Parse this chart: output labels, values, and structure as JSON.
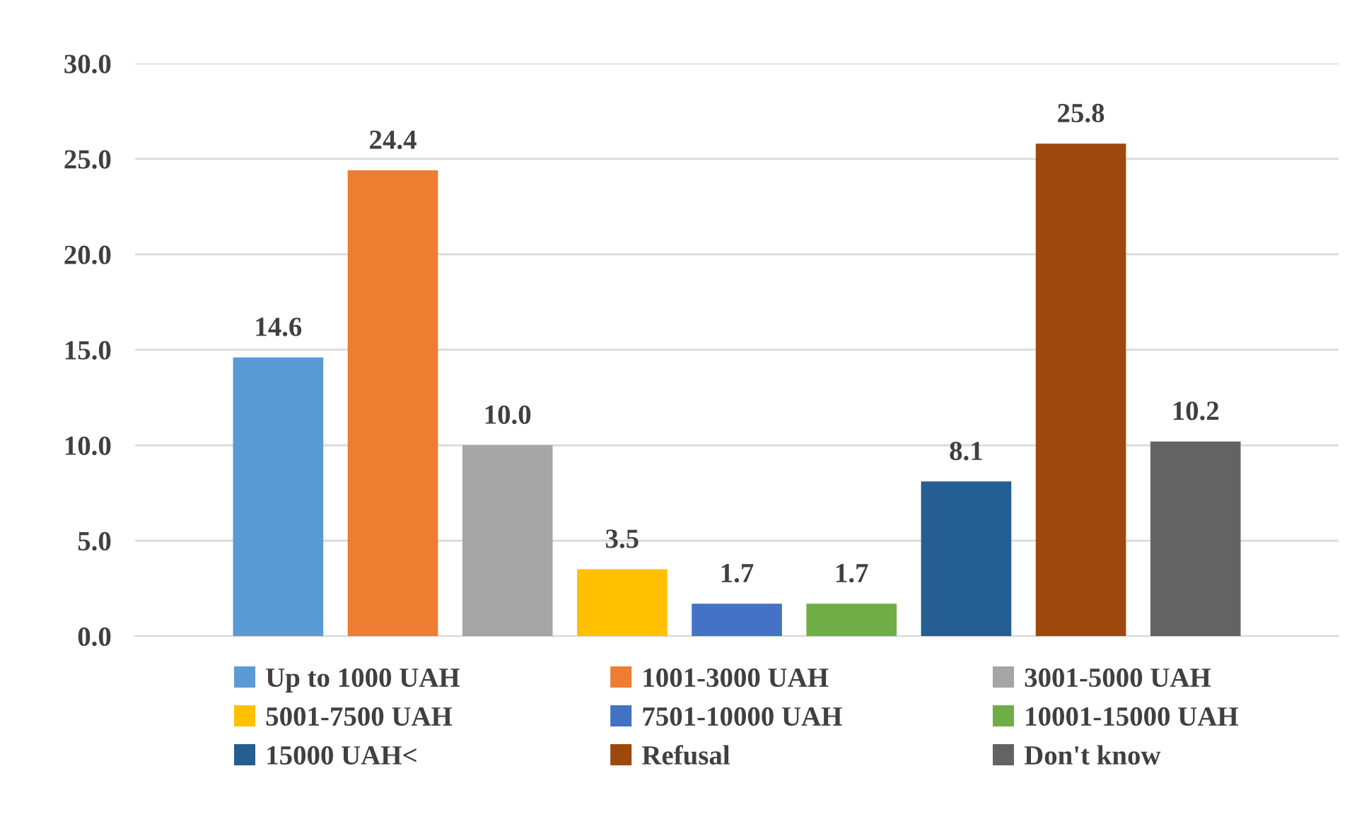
{
  "chart_data": {
    "type": "bar",
    "categories": [
      null
    ],
    "series": [
      {
        "name": "Up to 1000 UAH",
        "color": "#5b9bd5",
        "values": [
          14.6
        ],
        "value_labels": [
          "14.6"
        ]
      },
      {
        "name": "1001-3000 UAH",
        "color": "#ed7d31",
        "values": [
          24.4
        ],
        "value_labels": [
          "24.4"
        ]
      },
      {
        "name": "3001-5000 UAH",
        "color": "#a5a5a5",
        "values": [
          10.0
        ],
        "value_labels": [
          "10.0"
        ]
      },
      {
        "name": "5001-7500 UAH",
        "color": "#ffc000",
        "values": [
          3.5
        ],
        "value_labels": [
          "3.5"
        ]
      },
      {
        "name": "7501-10000 UAH",
        "color": "#4472c4",
        "values": [
          1.7
        ],
        "value_labels": [
          "1.7"
        ]
      },
      {
        "name": "10001-15000 UAH",
        "color": "#70ad47",
        "values": [
          1.7
        ],
        "value_labels": [
          "1.7"
        ]
      },
      {
        "name": "15000 UAH<",
        "color": "#255e91",
        "values": [
          8.1
        ],
        "value_labels": [
          "8.1"
        ]
      },
      {
        "name": "Refusal",
        "color": "#9e480e",
        "values": [
          25.8
        ],
        "value_labels": [
          "25.8"
        ]
      },
      {
        "name": "Don't know",
        "color": "#636363",
        "values": [
          10.2
        ],
        "value_labels": [
          "10.2"
        ]
      }
    ],
    "ylim": [
      0,
      30
    ],
    "yticks": [
      {
        "value": 0,
        "label": "0.0"
      },
      {
        "value": 5,
        "label": "5.0"
      },
      {
        "value": 10,
        "label": "10.0"
      },
      {
        "value": 15,
        "label": "15.0"
      },
      {
        "value": 20,
        "label": "20.0"
      },
      {
        "value": 25,
        "label": "25.0"
      },
      {
        "value": 30,
        "label": "30.0"
      }
    ],
    "grid": "y",
    "legend": "bottom"
  }
}
